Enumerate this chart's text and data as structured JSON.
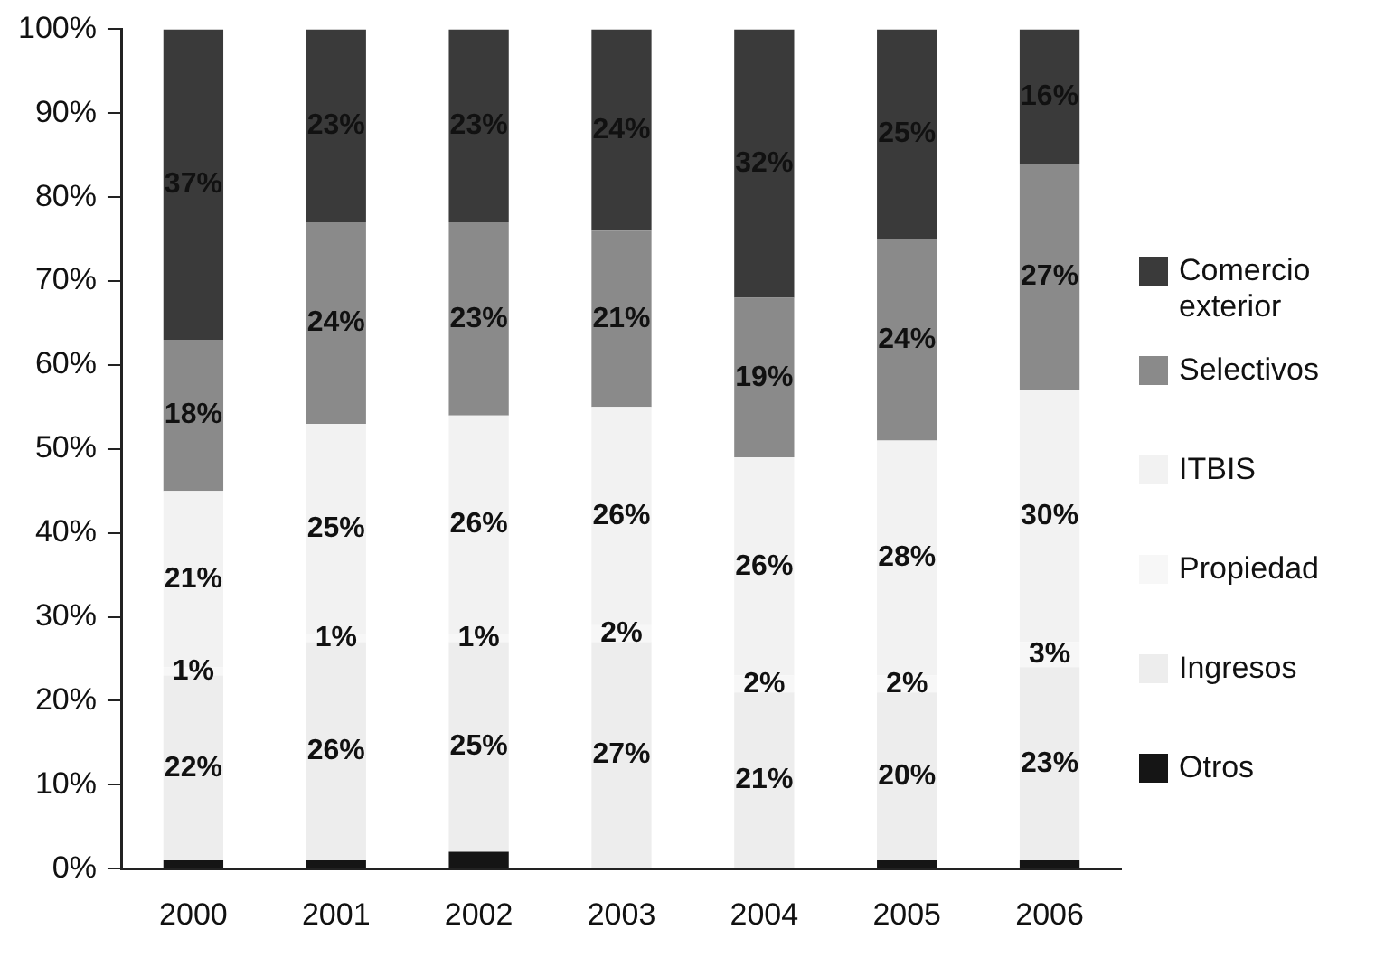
{
  "chart_data": {
    "type": "bar",
    "stacked": true,
    "categories": [
      "2000",
      "2001",
      "2002",
      "2003",
      "2004",
      "2005",
      "2006"
    ],
    "series": [
      {
        "name": "Otros",
        "color": "#151515",
        "values": [
          1,
          1,
          2,
          0,
          0,
          1,
          1
        ]
      },
      {
        "name": "Ingresos",
        "color": "#ededed",
        "values": [
          22,
          26,
          25,
          27,
          21,
          20,
          23
        ],
        "value_labels": [
          "22%",
          "26%",
          "25%",
          "27%",
          "21%",
          "20%",
          "23%"
        ]
      },
      {
        "name": "Propiedad",
        "color": "#f7f7f7",
        "values": [
          1,
          1,
          1,
          2,
          2,
          2,
          3
        ],
        "value_labels": [
          "1%",
          "1%",
          "1%",
          "2%",
          "2%",
          "2%",
          "3%"
        ]
      },
      {
        "name": "ITBIS",
        "color": "#f2f2f2",
        "values": [
          21,
          25,
          26,
          26,
          26,
          28,
          30
        ],
        "value_labels": [
          "21%",
          "25%",
          "26%",
          "26%",
          "26%",
          "28%",
          "30%"
        ]
      },
      {
        "name": "Selectivos",
        "color": "#8a8a8a",
        "values": [
          18,
          24,
          23,
          21,
          19,
          24,
          27
        ],
        "value_labels": [
          "18%",
          "24%",
          "23%",
          "21%",
          "19%",
          "24%",
          "27%"
        ]
      },
      {
        "name": "Comercio exterior",
        "color": "#3a3a3a",
        "values": [
          37,
          23,
          23,
          24,
          32,
          25,
          16
        ],
        "value_labels": [
          "37%",
          "23%",
          "23%",
          "24%",
          "32%",
          "25%",
          "16%"
        ]
      }
    ],
    "ylim": [
      0,
      100
    ],
    "yticks": [
      {
        "value": 0,
        "label": "0%"
      },
      {
        "value": 10,
        "label": "10%"
      },
      {
        "value": 20,
        "label": "20%"
      },
      {
        "value": 30,
        "label": "30%"
      },
      {
        "value": 40,
        "label": "40%"
      },
      {
        "value": 50,
        "label": "50%"
      },
      {
        "value": 60,
        "label": "60%"
      },
      {
        "value": 70,
        "label": "70%"
      },
      {
        "value": 80,
        "label": "80%"
      },
      {
        "value": 90,
        "label": "90%"
      },
      {
        "value": 100,
        "label": "100%"
      }
    ],
    "grid": false,
    "legend": "right"
  }
}
